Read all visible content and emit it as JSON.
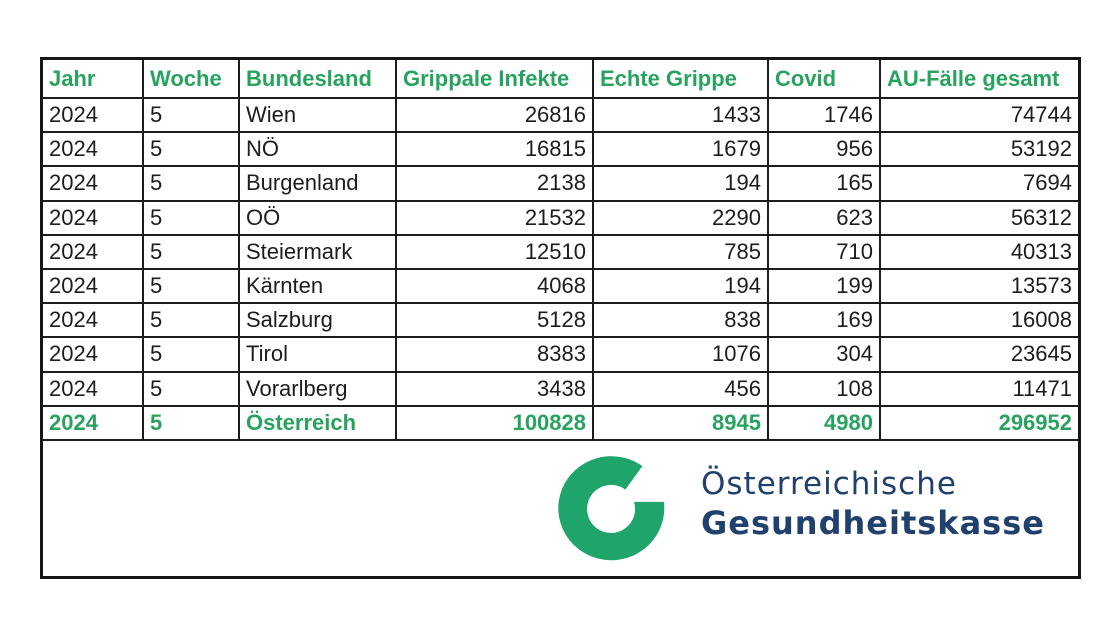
{
  "report": {
    "table": {
      "columns": [
        {
          "key": "jahr",
          "label": "Jahr",
          "align": "left"
        },
        {
          "key": "woche",
          "label": "Woche",
          "align": "left"
        },
        {
          "key": "bundesland",
          "label": "Bundesland",
          "align": "left"
        },
        {
          "key": "grippale",
          "label": "Grippale Infekte",
          "align": "right"
        },
        {
          "key": "grippe",
          "label": "Echte Grippe",
          "align": "right"
        },
        {
          "key": "covid",
          "label": "Covid",
          "align": "right"
        },
        {
          "key": "au",
          "label": "AU-Fälle gesamt",
          "align": "right"
        }
      ],
      "rows": [
        {
          "total": false,
          "cells": [
            "2024",
            "5",
            "Wien",
            "26816",
            "1433",
            "1746",
            "74744"
          ]
        },
        {
          "total": false,
          "cells": [
            "2024",
            "5",
            "NÖ",
            "16815",
            "1679",
            "956",
            "53192"
          ]
        },
        {
          "total": false,
          "cells": [
            "2024",
            "5",
            "Burgenland",
            "2138",
            "194",
            "165",
            "7694"
          ]
        },
        {
          "total": false,
          "cells": [
            "2024",
            "5",
            "OÖ",
            "21532",
            "2290",
            "623",
            "56312"
          ]
        },
        {
          "total": false,
          "cells": [
            "2024",
            "5",
            "Steiermark",
            "12510",
            "785",
            "710",
            "40313"
          ]
        },
        {
          "total": false,
          "cells": [
            "2024",
            "5",
            "Kärnten",
            "4068",
            "194",
            "199",
            "13573"
          ]
        },
        {
          "total": false,
          "cells": [
            "2024",
            "5",
            "Salzburg",
            "5128",
            "838",
            "169",
            "16008"
          ]
        },
        {
          "total": false,
          "cells": [
            "2024",
            "5",
            "Tirol",
            "8383",
            "1076",
            "304",
            "23645"
          ]
        },
        {
          "total": false,
          "cells": [
            "2024",
            "5",
            "Vorarlberg",
            "3438",
            "456",
            "108",
            "11471"
          ]
        },
        {
          "total": true,
          "cells": [
            "2024",
            "5",
            "Österreich",
            "100828",
            "8945",
            "4980",
            "296952"
          ]
        }
      ]
    },
    "logo": {
      "line1": "Österreichische",
      "line2": "Gesundheitskasse",
      "mark": "oegk-ring-icon"
    },
    "colors": {
      "accent_green": "#28a35f",
      "logo_green": "#1fa46c",
      "navy": "#20406e",
      "border_dark": "#1d1d1d"
    }
  }
}
